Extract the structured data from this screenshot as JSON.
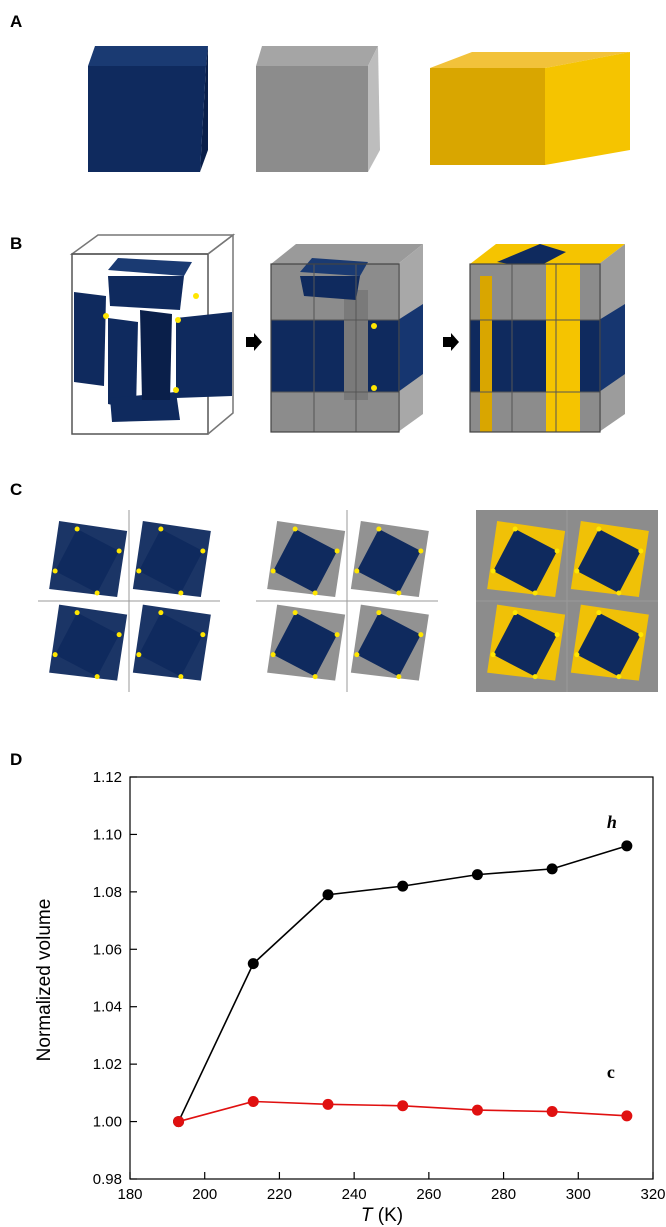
{
  "panels": {
    "a": {
      "label": "A"
    },
    "b": {
      "label": "B"
    },
    "c": {
      "label": "C"
    },
    "d": {
      "label": "D"
    }
  },
  "colors": {
    "navy": "#0f2a5e",
    "gray": "#8c8c8c",
    "gold": "#f5c400",
    "joint": "#ffe600",
    "line_black": "#000000",
    "line_red": "#e01010"
  },
  "chart_data": {
    "type": "line",
    "xlabel_var": "T",
    "xlabel_unit": "(K)",
    "ylabel": "Normalized volume",
    "xlim": [
      180,
      320
    ],
    "ylim": [
      0.98,
      1.12
    ],
    "xticks": [
      180,
      200,
      220,
      240,
      260,
      280,
      300,
      320
    ],
    "yticks": [
      "0.98",
      "1.00",
      "1.02",
      "1.04",
      "1.06",
      "1.08",
      "1.10",
      "1.12"
    ],
    "series": [
      {
        "name": "h",
        "color": "#000000",
        "x": [
          193,
          213,
          233,
          253,
          273,
          293,
          313
        ],
        "y": [
          1.0,
          1.055,
          1.079,
          1.082,
          1.086,
          1.088,
          1.096
        ]
      },
      {
        "name": "c",
        "color": "#e01010",
        "x": [
          193,
          213,
          233,
          253,
          273,
          293,
          313
        ],
        "y": [
          1.0,
          1.007,
          1.006,
          1.0055,
          1.004,
          1.0035,
          1.002
        ]
      }
    ]
  }
}
